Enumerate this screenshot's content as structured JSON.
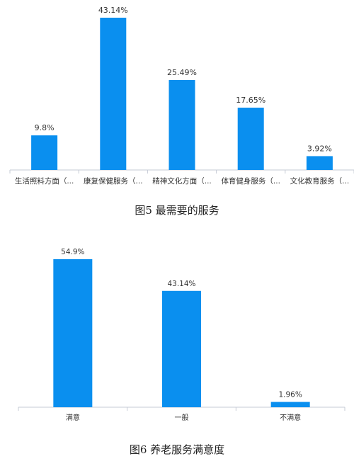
{
  "colors": {
    "bar": "#0a8fef",
    "axis": "#c6cbd6",
    "label": "#333333"
  },
  "chart_data": [
    {
      "type": "bar",
      "categories": [
        "生活照料方面（...",
        "康复保健服务（...",
        "精神文化方面（...",
        "体育健身服务（...",
        "文化教育服务（..."
      ],
      "values": [
        9.8,
        43.14,
        25.49,
        17.65,
        3.92
      ],
      "value_labels": [
        "9.8%",
        "43.14%",
        "25.49%",
        "17.65%",
        "3.92%"
      ],
      "ylim": [
        0,
        43.14
      ],
      "grid": false,
      "caption": "图5 最需要的服务"
    },
    {
      "type": "bar",
      "categories": [
        "满意",
        "一般",
        "不满意"
      ],
      "values": [
        54.9,
        43.14,
        1.96
      ],
      "value_labels": [
        "54.9%",
        "43.14%",
        "1.96%"
      ],
      "ylim": [
        0,
        54.9
      ],
      "grid": false,
      "caption": "图6 养老服务满意度"
    }
  ]
}
